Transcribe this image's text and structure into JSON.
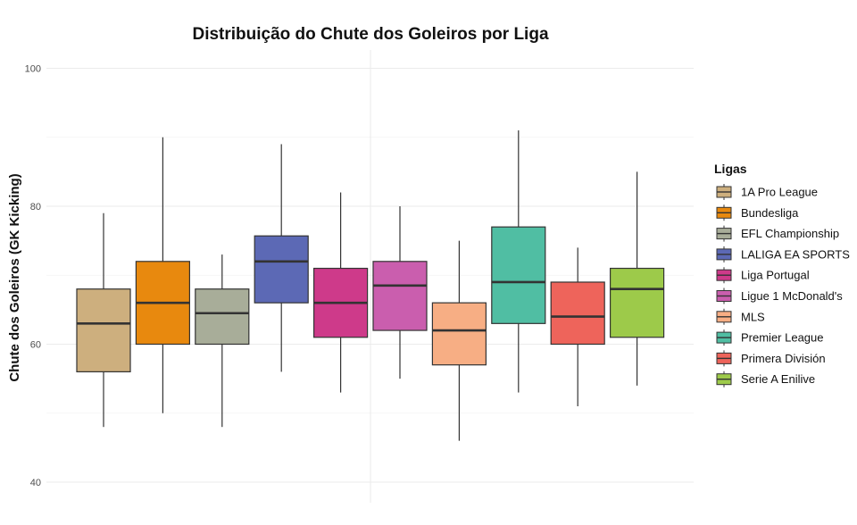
{
  "chart_data": {
    "type": "boxplot",
    "title": "Distribuição do Chute dos Goleiros por Liga",
    "xlabel": "",
    "ylabel": "Chute dos Goleiros (GK Kicking)",
    "ylim": [
      37,
      107
    ],
    "yticks": [
      40,
      60,
      80,
      100
    ],
    "grid": true,
    "legend": {
      "title": "Ligas",
      "position": "right"
    },
    "series": [
      {
        "name": "1A Pro League",
        "color": "#CDAF7E",
        "min": 48,
        "q1": 56,
        "median": 63,
        "q3": 68,
        "max": 79
      },
      {
        "name": "Bundesliga",
        "color": "#E8890E",
        "min": 50,
        "q1": 60,
        "median": 66,
        "q3": 72,
        "max": 90
      },
      {
        "name": "EFL Championship",
        "color": "#A8AD99",
        "min": 48,
        "q1": 60,
        "median": 64.5,
        "q3": 68,
        "max": 73
      },
      {
        "name": "LALIGA EA SPORTS",
        "color": "#5C69B5",
        "min": 56,
        "q1": 66,
        "median": 72,
        "q3": 75.7,
        "max": 89
      },
      {
        "name": "Liga Portugal",
        "color": "#CE3A8A",
        "min": 53,
        "q1": 61,
        "median": 66,
        "q3": 71,
        "max": 82
      },
      {
        "name": "Ligue 1 McDonald's",
        "color": "#CA5EAE",
        "min": 55,
        "q1": 62,
        "median": 68.5,
        "q3": 72,
        "max": 80
      },
      {
        "name": "MLS",
        "color": "#F7AE84",
        "min": 46,
        "q1": 57,
        "median": 62,
        "q3": 66,
        "max": 75
      },
      {
        "name": "Premier League",
        "color": "#50BEA3",
        "min": 53,
        "q1": 63,
        "median": 69,
        "q3": 77,
        "max": 91
      },
      {
        "name": "Primera División",
        "color": "#EE645B",
        "min": 51,
        "q1": 60,
        "median": 64,
        "q3": 69,
        "max": 74
      },
      {
        "name": "Serie A Enilive",
        "color": "#9DCA4A",
        "min": 54,
        "q1": 61,
        "median": 68,
        "q3": 71,
        "max": 85
      }
    ]
  }
}
